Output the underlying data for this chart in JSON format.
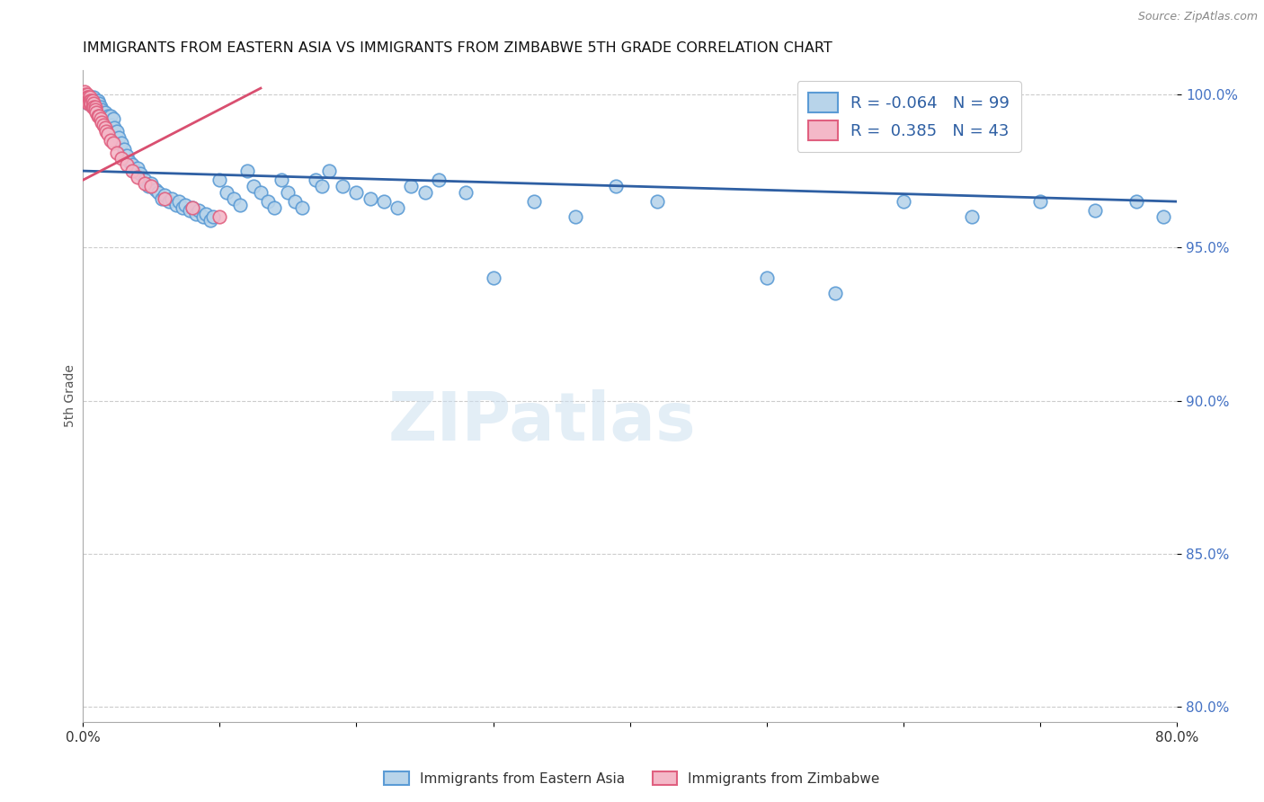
{
  "title": "IMMIGRANTS FROM EASTERN ASIA VS IMMIGRANTS FROM ZIMBABWE 5TH GRADE CORRELATION CHART",
  "source": "Source: ZipAtlas.com",
  "ylabel": "5th Grade",
  "xlim": [
    0.0,
    0.8
  ],
  "ylim": [
    0.795,
    1.008
  ],
  "yticks": [
    0.8,
    0.85,
    0.9,
    0.95,
    1.0
  ],
  "ytick_labels": [
    "80.0%",
    "85.0%",
    "90.0%",
    "95.0%",
    "100.0%"
  ],
  "xticks": [
    0.0,
    0.1,
    0.2,
    0.3,
    0.4,
    0.5,
    0.6,
    0.7,
    0.8
  ],
  "xtick_labels": [
    "0.0%",
    "",
    "",
    "",
    "",
    "",
    "",
    "",
    "80.0%"
  ],
  "blue_R": -0.064,
  "blue_N": 99,
  "pink_R": 0.385,
  "pink_N": 43,
  "blue_color": "#b8d4ea",
  "blue_edge_color": "#5b9bd5",
  "pink_color": "#f4b8c8",
  "pink_edge_color": "#e06080",
  "blue_line_color": "#2e5fa3",
  "pink_line_color": "#d94f70",
  "legend_label_blue": "Immigrants from Eastern Asia",
  "legend_label_pink": "Immigrants from Zimbabwe",
  "watermark": "ZIPatlas",
  "blue_line_x0": 0.0,
  "blue_line_y0": 0.975,
  "blue_line_x1": 0.8,
  "blue_line_y1": 0.965,
  "pink_line_x0": 0.0,
  "pink_line_y0": 0.972,
  "pink_line_x1": 0.13,
  "pink_line_y1": 1.002,
  "blue_x": [
    0.003,
    0.004,
    0.005,
    0.005,
    0.006,
    0.006,
    0.007,
    0.007,
    0.008,
    0.008,
    0.009,
    0.009,
    0.01,
    0.01,
    0.011,
    0.011,
    0.012,
    0.012,
    0.013,
    0.013,
    0.014,
    0.015,
    0.016,
    0.017,
    0.018,
    0.019,
    0.02,
    0.021,
    0.022,
    0.023,
    0.025,
    0.026,
    0.028,
    0.03,
    0.032,
    0.034,
    0.036,
    0.038,
    0.04,
    0.042,
    0.045,
    0.048,
    0.05,
    0.053,
    0.055,
    0.058,
    0.06,
    0.063,
    0.065,
    0.068,
    0.07,
    0.073,
    0.075,
    0.078,
    0.08,
    0.083,
    0.085,
    0.088,
    0.09,
    0.093,
    0.095,
    0.1,
    0.105,
    0.11,
    0.115,
    0.12,
    0.125,
    0.13,
    0.135,
    0.14,
    0.145,
    0.15,
    0.155,
    0.16,
    0.17,
    0.175,
    0.18,
    0.19,
    0.2,
    0.21,
    0.22,
    0.23,
    0.24,
    0.25,
    0.26,
    0.28,
    0.3,
    0.33,
    0.36,
    0.39,
    0.42,
    0.5,
    0.55,
    0.6,
    0.65,
    0.7,
    0.74,
    0.77,
    0.79
  ],
  "blue_y": [
    0.998,
    0.997,
    0.999,
    0.998,
    0.999,
    0.997,
    0.998,
    0.997,
    0.999,
    0.997,
    0.998,
    0.996,
    0.997,
    0.996,
    0.998,
    0.995,
    0.997,
    0.995,
    0.996,
    0.994,
    0.995,
    0.993,
    0.994,
    0.992,
    0.993,
    0.991,
    0.993,
    0.99,
    0.992,
    0.989,
    0.988,
    0.986,
    0.984,
    0.982,
    0.98,
    0.978,
    0.977,
    0.975,
    0.976,
    0.974,
    0.972,
    0.97,
    0.971,
    0.969,
    0.968,
    0.966,
    0.967,
    0.965,
    0.966,
    0.964,
    0.965,
    0.963,
    0.964,
    0.962,
    0.963,
    0.961,
    0.962,
    0.96,
    0.961,
    0.959,
    0.96,
    0.972,
    0.968,
    0.966,
    0.964,
    0.975,
    0.97,
    0.968,
    0.965,
    0.963,
    0.972,
    0.968,
    0.965,
    0.963,
    0.972,
    0.97,
    0.975,
    0.97,
    0.968,
    0.966,
    0.965,
    0.963,
    0.97,
    0.968,
    0.972,
    0.968,
    0.94,
    0.965,
    0.96,
    0.97,
    0.965,
    0.94,
    0.935,
    0.965,
    0.96,
    0.965,
    0.962,
    0.965,
    0.96
  ],
  "pink_x": [
    0.001,
    0.001,
    0.002,
    0.002,
    0.002,
    0.003,
    0.003,
    0.003,
    0.004,
    0.004,
    0.004,
    0.005,
    0.005,
    0.005,
    0.006,
    0.006,
    0.007,
    0.007,
    0.008,
    0.008,
    0.009,
    0.009,
    0.01,
    0.011,
    0.012,
    0.013,
    0.014,
    0.015,
    0.016,
    0.017,
    0.018,
    0.02,
    0.022,
    0.025,
    0.028,
    0.032,
    0.036,
    0.04,
    0.045,
    0.05,
    0.06,
    0.08,
    0.1
  ],
  "pink_y": [
    1.001,
    0.999,
    1.0,
    0.999,
    0.998,
    1.0,
    0.999,
    0.998,
    0.999,
    0.998,
    0.997,
    0.999,
    0.998,
    0.997,
    0.998,
    0.997,
    0.998,
    0.996,
    0.997,
    0.996,
    0.996,
    0.995,
    0.994,
    0.993,
    0.993,
    0.992,
    0.991,
    0.99,
    0.989,
    0.988,
    0.987,
    0.985,
    0.984,
    0.981,
    0.979,
    0.977,
    0.975,
    0.973,
    0.971,
    0.97,
    0.966,
    0.963,
    0.96
  ]
}
